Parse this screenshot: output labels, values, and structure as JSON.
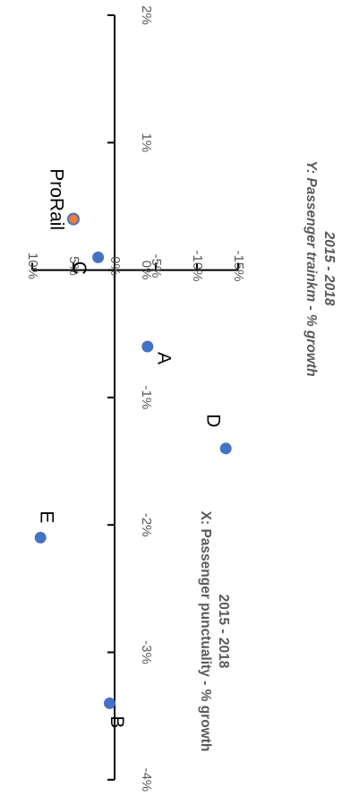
{
  "chart_data": {
    "type": "scatter",
    "xlabel": [
      "X: Passenger punctuality - % growth",
      "2015 - 2018"
    ],
    "ylabel": [
      "Y: Passenger trainkm - % growth",
      "2015 - 2018"
    ],
    "xlim": [
      -15,
      10
    ],
    "ylim": [
      -4,
      2
    ],
    "x_ticks": [
      {
        "v": 10,
        "label": "10%"
      },
      {
        "v": 5,
        "label": "5%"
      },
      {
        "v": 0,
        "label": "0%"
      },
      {
        "v": -5,
        "label": "-5%"
      },
      {
        "v": -10,
        "label": "-10%"
      },
      {
        "v": -15,
        "label": "-15%"
      }
    ],
    "y_ticks": [
      {
        "v": 2,
        "label": "2%"
      },
      {
        "v": 1,
        "label": "1%"
      },
      {
        "v": 0,
        "label": "0%"
      },
      {
        "v": -1,
        "label": "-1%"
      },
      {
        "v": -2,
        "label": "-2%"
      },
      {
        "v": -3,
        "label": "-3%"
      },
      {
        "v": -4,
        "label": "-4%"
      }
    ],
    "points": [
      {
        "label": "ProRail",
        "x": 5.0,
        "y": 0.4,
        "color": "#ED7D31",
        "edge": "#4472C4"
      },
      {
        "label": "C",
        "x": 2.0,
        "y": 0.1,
        "color": "#4472C4"
      },
      {
        "label": "A",
        "x": -4.0,
        "y": -0.6,
        "color": "#4472C4"
      },
      {
        "label": "D",
        "x": -13.5,
        "y": -1.4,
        "color": "#4472C4"
      },
      {
        "label": "E",
        "x": 9.0,
        "y": -2.1,
        "color": "#4472C4"
      },
      {
        "label": "B",
        "x": 0.6,
        "y": -3.4,
        "color": "#4472C4"
      }
    ],
    "grid": false,
    "legend": "none",
    "orientation": "rotated 90 degrees clockwise"
  }
}
